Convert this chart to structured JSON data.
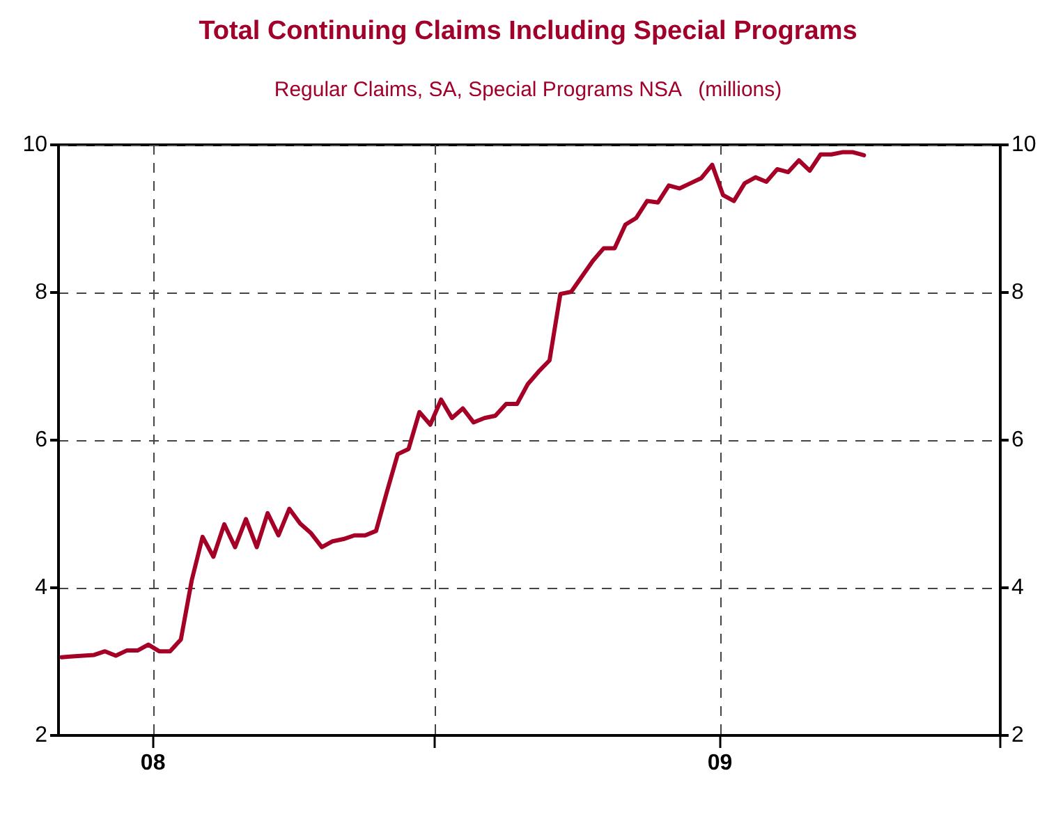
{
  "chart_data": {
    "type": "line",
    "title": "Total Continuing Claims Including Special Programs",
    "subtitle": "Regular Claims, SA, Special Programs NSA   (millions)",
    "x": [
      "2007-11-03",
      "2007-11-10",
      "2007-11-17",
      "2007-11-24",
      "2007-12-01",
      "2007-12-08",
      "2007-12-15",
      "2007-12-22",
      "2007-12-29",
      "2008-01-05",
      "2008-01-12",
      "2008-01-19",
      "2008-01-26",
      "2008-02-02",
      "2008-02-09",
      "2008-02-16",
      "2008-02-23",
      "2008-03-01",
      "2008-03-08",
      "2008-03-15",
      "2008-03-22",
      "2008-03-29",
      "2008-04-05",
      "2008-04-12",
      "2008-04-19",
      "2008-04-26",
      "2008-05-03",
      "2008-05-10",
      "2008-05-17",
      "2008-05-24",
      "2008-05-31",
      "2008-06-07",
      "2008-06-14",
      "2008-06-21",
      "2008-06-28",
      "2008-07-05",
      "2008-07-12",
      "2008-07-19",
      "2008-07-26",
      "2008-08-02",
      "2008-08-09",
      "2008-08-16",
      "2008-08-23",
      "2008-08-30",
      "2008-09-06",
      "2008-09-13",
      "2008-09-20",
      "2008-09-27",
      "2008-10-04",
      "2008-10-11",
      "2008-10-18",
      "2008-10-25",
      "2008-11-01",
      "2008-11-08",
      "2008-11-15",
      "2008-11-22",
      "2008-11-29",
      "2008-12-06",
      "2008-12-13",
      "2008-12-20",
      "2008-12-27",
      "2009-01-03",
      "2009-01-10",
      "2009-01-17",
      "2009-01-24",
      "2009-01-31",
      "2009-02-07",
      "2009-02-14",
      "2009-02-21",
      "2009-02-28",
      "2009-03-07",
      "2009-03-14",
      "2009-03-21",
      "2009-03-28",
      "2009-04-04"
    ],
    "series": [
      {
        "color": "#a50026",
        "values": [
          3.06,
          3.07,
          3.08,
          3.09,
          3.14,
          3.08,
          3.15,
          3.15,
          3.23,
          3.14,
          3.14,
          3.3,
          4.1,
          4.69,
          4.42,
          4.86,
          4.55,
          4.93,
          4.55,
          5.01,
          4.71,
          5.07,
          4.87,
          4.74,
          4.55,
          4.63,
          4.66,
          4.71,
          4.71,
          4.77,
          5.3,
          5.81,
          5.88,
          6.38,
          6.21,
          6.55,
          6.3,
          6.43,
          6.24,
          6.3,
          6.33,
          6.49,
          6.49,
          6.76,
          6.93,
          7.08,
          7.98,
          8.01,
          8.22,
          8.43,
          8.6,
          8.6,
          8.92,
          9.01,
          9.24,
          9.22,
          9.45,
          9.41,
          9.48,
          9.55,
          9.73,
          9.32,
          9.24,
          9.48,
          9.56,
          9.5,
          9.67,
          9.63,
          9.79,
          9.65,
          9.87,
          9.87,
          9.9,
          9.9,
          9.86
        ]
      }
    ],
    "xlim": [
      "2007-11-01",
      "2009-07-01"
    ],
    "xticks": [
      {
        "value": "2008-01-01",
        "label": "08"
      },
      {
        "value": "2008-07-01",
        "label": null
      },
      {
        "value": "2009-01-01",
        "label": "09"
      },
      {
        "value": "2009-07-01",
        "label": null
      }
    ],
    "ylim": [
      2,
      10
    ],
    "yticks": [
      2,
      4,
      6,
      8,
      10
    ],
    "y2lim": [
      2,
      10
    ],
    "y2ticks": [
      2,
      4,
      6,
      8,
      10
    ],
    "grid": true,
    "marker": "none",
    "line_style": "solid"
  }
}
